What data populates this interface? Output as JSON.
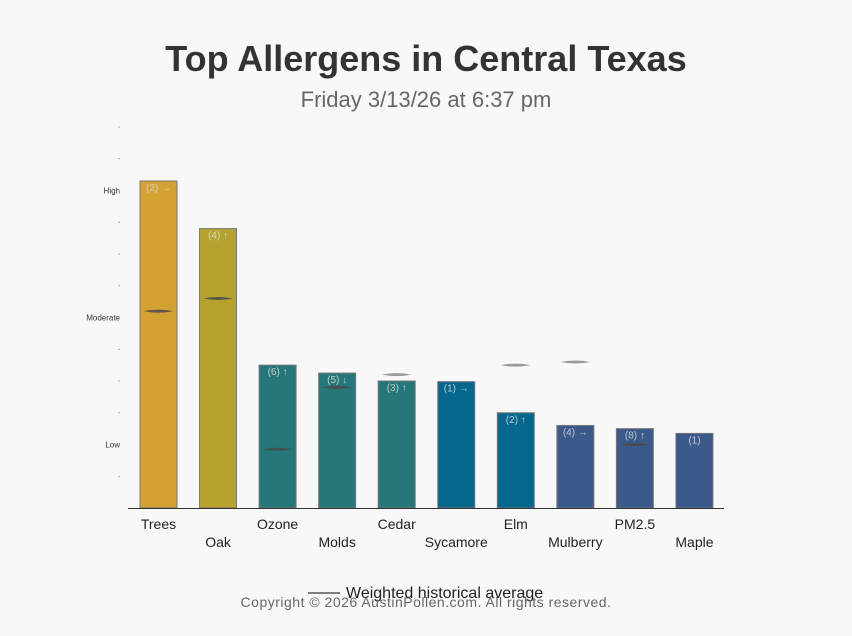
{
  "header": {
    "title": "Top Allergens in Central Texas",
    "subtitle": "Friday 3/13/26 at 6:37 pm"
  },
  "footer": {
    "copyright": "Copyright © 2026 AustinPollen.com.  All rights reserved."
  },
  "chart_data": {
    "type": "bar",
    "title": "Top Allergens in Central Texas",
    "subtitle": "Friday 3/13/26 at 6:37 pm",
    "categories": [
      "Trees",
      "Oak",
      "Ozone",
      "Molds",
      "Cedar",
      "Sycamore",
      "Elm",
      "Mulberry",
      "PM2.5",
      "Maple"
    ],
    "values": [
      10.3,
      8.8,
      4.5,
      4.25,
      4.0,
      3.98,
      3.0,
      2.6,
      2.5,
      2.35
    ],
    "bar_labels": [
      "(2) →",
      "(4) ↑",
      "(6) ↑",
      "(5) ↓",
      "(3) ↑",
      "(1) →",
      "(2) ↑",
      "(4) →",
      "(8) ↑",
      "(1)"
    ],
    "bar_colors": [
      "#d4a133",
      "#b5a22f",
      "#25777a",
      "#25777a",
      "#25777a",
      "#06678e",
      "#06678e",
      "#3b5a8b",
      "#3b5a8b",
      "#3b5a8b"
    ],
    "weighted_historical_average": [
      6.2,
      6.6,
      1.85,
      3.8,
      4.2,
      null,
      4.5,
      4.6,
      2.0,
      null
    ],
    "ylim": [
      0,
      12
    ],
    "ytick_values": [
      1,
      2,
      3,
      4,
      5,
      6,
      7,
      8,
      9,
      10,
      11,
      12
    ],
    "ytick_labels": [
      "",
      "Low",
      "",
      "",
      "",
      "Moderate",
      "",
      "",
      "",
      "High",
      "",
      ""
    ],
    "legend": {
      "label": "Weighted historical average",
      "placement": "bottom"
    },
    "grid": false
  }
}
